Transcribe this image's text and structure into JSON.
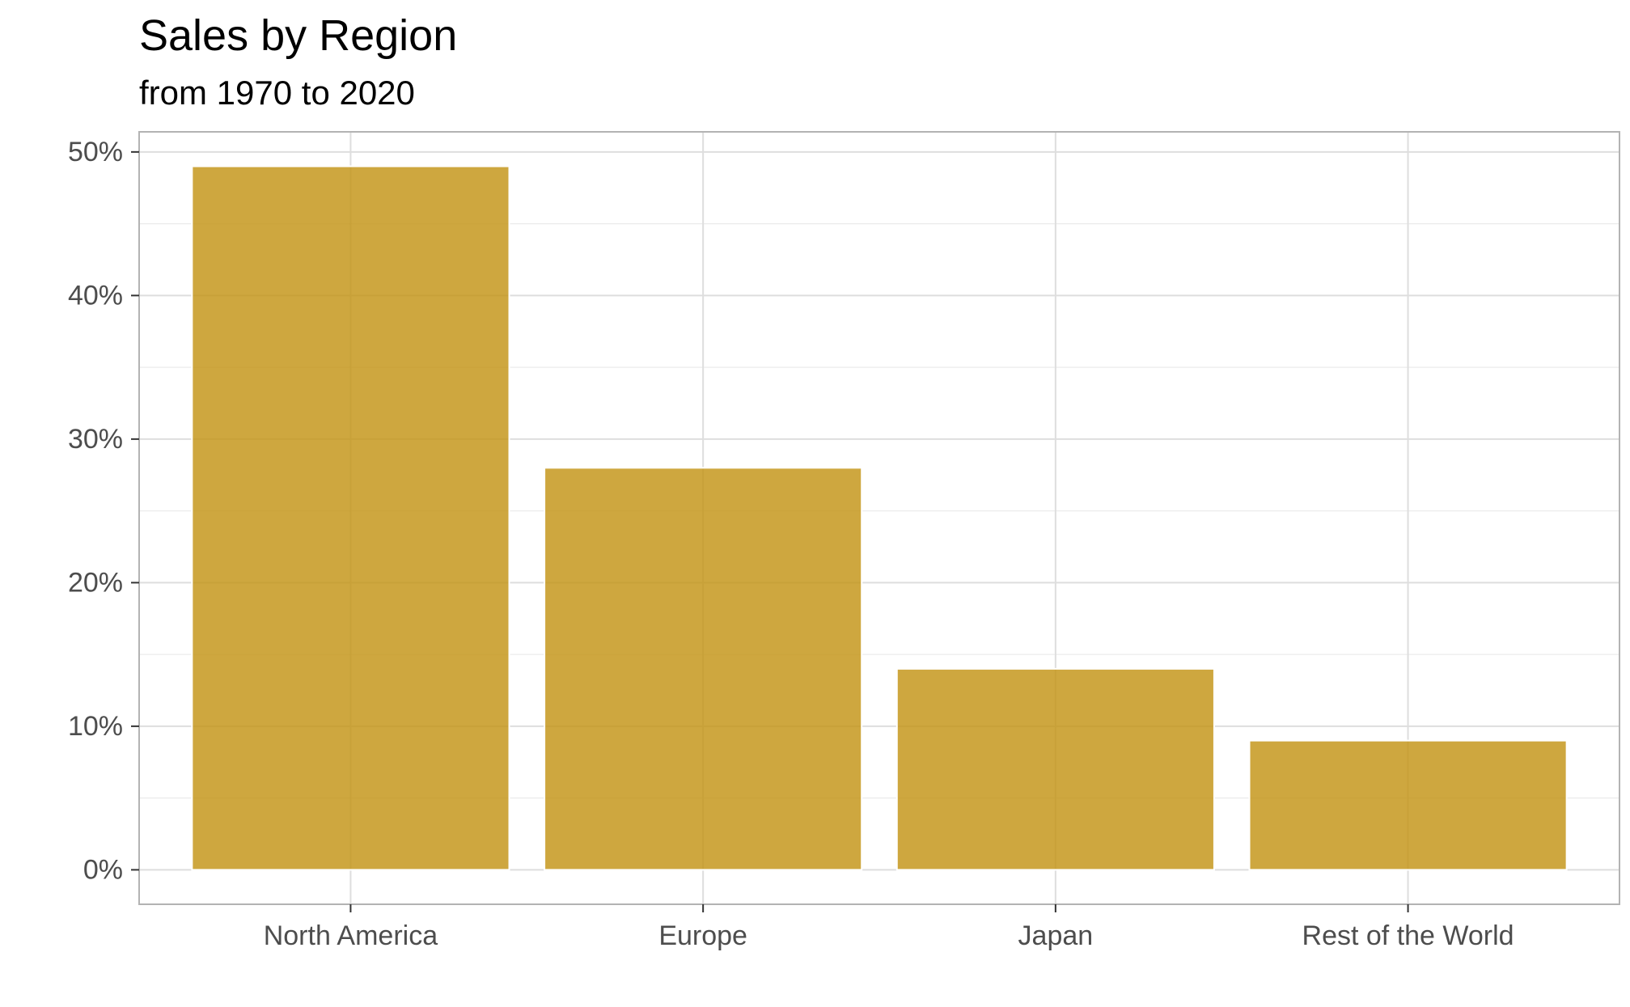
{
  "chart_data": {
    "type": "bar",
    "title": "Sales by Region",
    "subtitle": "from 1970 to 2020",
    "xlabel": "",
    "ylabel": "",
    "categories": [
      "North America",
      "Europe",
      "Japan",
      "Rest of the World"
    ],
    "values": [
      0.49,
      0.28,
      0.14,
      0.09
    ],
    "ylim": [
      -0.024,
      0.514
    ],
    "yticks": [
      0,
      0.1,
      0.2,
      0.3,
      0.4,
      0.5
    ],
    "ytick_labels": [
      "0%",
      "10%",
      "20%",
      "30%",
      "40%",
      "50%"
    ],
    "minor_yticks": [
      0.05,
      0.15,
      0.25,
      0.35,
      0.45
    ],
    "grid": true,
    "legend": "none",
    "bar_color": "#c39415",
    "panel_border_color": "#b3b3b3",
    "grid_color": "#dedede"
  }
}
